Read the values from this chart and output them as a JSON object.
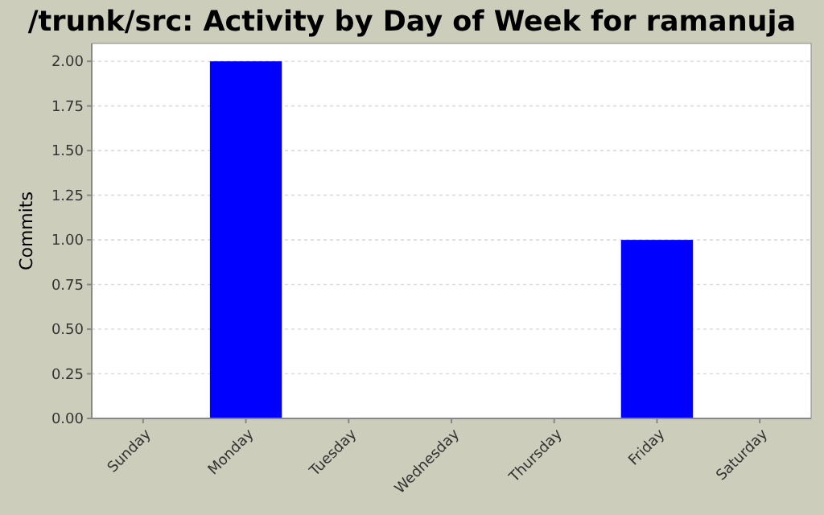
{
  "chart_data": {
    "type": "bar",
    "title": "/trunk/src: Activity by Day of Week for ramanuja",
    "ylabel": "Commits",
    "categories": [
      "Sunday",
      "Monday",
      "Tuesday",
      "Wednesday",
      "Thursday",
      "Friday",
      "Saturday"
    ],
    "values": [
      0,
      2,
      0,
      0,
      0,
      1,
      0
    ],
    "color": "#0000ff",
    "ylim": [
      0,
      2.1
    ],
    "yticks": [
      {
        "value": 0,
        "label": "0.00"
      },
      {
        "value": 0.25,
        "label": "0.25"
      },
      {
        "value": 0.5,
        "label": "0.50"
      },
      {
        "value": 0.75,
        "label": "0.75"
      },
      {
        "value": 1,
        "label": "1.00"
      },
      {
        "value": 1.25,
        "label": "1.25"
      },
      {
        "value": 1.5,
        "label": "1.50"
      },
      {
        "value": 1.75,
        "label": "1.75"
      },
      {
        "value": 2,
        "label": "2.00"
      }
    ],
    "grid": "y"
  }
}
